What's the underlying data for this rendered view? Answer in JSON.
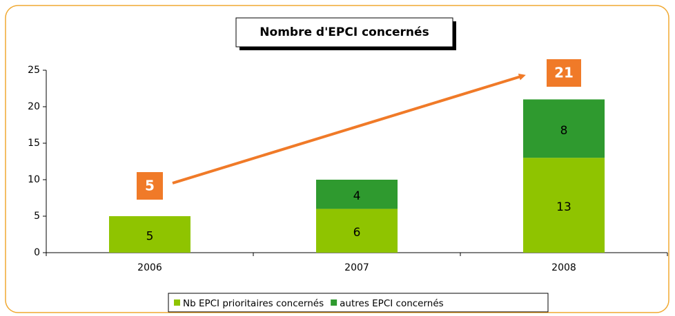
{
  "chart_data": {
    "type": "stacked_bar",
    "title": "Nombre d'EPCI concernés",
    "categories": [
      "2006",
      "2007",
      "2008"
    ],
    "series": [
      {
        "name": "Nb EPCI prioritaires concernés",
        "color": "#8fc400",
        "values": [
          5,
          6,
          13
        ]
      },
      {
        "name": "autres EPCI concernés",
        "color": "#2f9a2f",
        "values": [
          null,
          4,
          8
        ]
      }
    ],
    "ylim": [
      0,
      25
    ],
    "yticks": [
      0,
      5,
      10,
      15,
      20,
      25
    ],
    "grid": false,
    "legend": "bottom",
    "annotations": [
      "5",
      "21"
    ],
    "annotation_color": "#f07a28"
  }
}
